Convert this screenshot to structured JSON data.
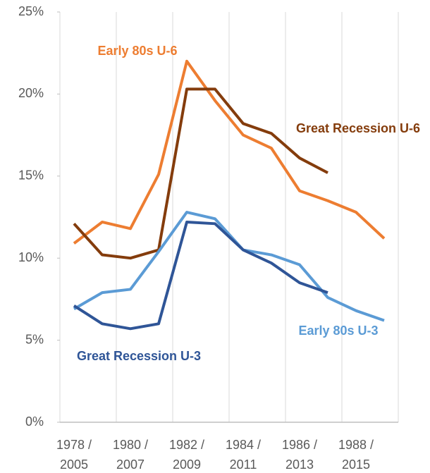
{
  "chart_data": {
    "type": "line",
    "categories": [
      "1978 / 2005",
      null,
      "1980 / 2007",
      null,
      "1982 / 2009",
      null,
      "1984 / 2011",
      null,
      "1986 / 2013",
      null,
      "1988 / 2015",
      null
    ],
    "series": [
      {
        "name": "Early 80s U-6",
        "color": "#ED7D31",
        "values": [
          10.9,
          12.2,
          11.8,
          15.1,
          22.0,
          19.6,
          17.5,
          16.7,
          14.1,
          13.5,
          12.8,
          11.2
        ]
      },
      {
        "name": "Great Recession U-6",
        "color": "#843C0C",
        "values": [
          12.1,
          10.2,
          10.0,
          10.5,
          20.3,
          20.3,
          18.2,
          17.6,
          16.1,
          15.2,
          null,
          null
        ]
      },
      {
        "name": "Early 80s U-3",
        "color": "#5B9BD5",
        "values": [
          6.9,
          7.9,
          8.1,
          10.4,
          12.8,
          12.4,
          10.5,
          10.2,
          9.6,
          7.6,
          6.8,
          6.2
        ]
      },
      {
        "name": "Great Recession U-3",
        "color": "#2F5597",
        "values": [
          7.1,
          6.0,
          5.7,
          6.0,
          12.2,
          12.1,
          10.5,
          9.7,
          8.5,
          7.9,
          null,
          null
        ]
      }
    ],
    "ylim": [
      0,
      25
    ],
    "yticks": [
      {
        "value": 0,
        "label": "0%"
      },
      {
        "value": 5,
        "label": "5%"
      },
      {
        "value": 10,
        "label": "10%"
      },
      {
        "value": 15,
        "label": "15%"
      },
      {
        "value": 20,
        "label": "20%"
      },
      {
        "value": 25,
        "label": "25%"
      }
    ]
  }
}
